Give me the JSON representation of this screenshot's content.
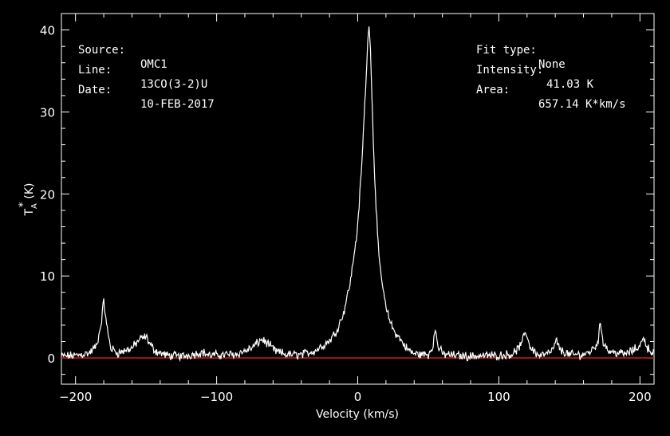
{
  "header_left": {
    "source_label": "Source:",
    "source_value": "OMC1",
    "line_label": "Line:",
    "line_value": "13CO(3-2)U",
    "date_label": "Date:",
    "date_value": "10-FEB-2017"
  },
  "header_right": {
    "fit_label": "Fit type:",
    "fit_value": "None",
    "intensity_label": "Intensity:",
    "intensity_value": "41.03 K",
    "area_label": "Area:",
    "area_value": "657.14 K*km/s"
  },
  "colors": {
    "background": "#000000",
    "trace": "#ffffff",
    "baseline": "#e0201e",
    "frame": "#ffffff"
  },
  "chart_data": {
    "type": "line",
    "xlabel": "Velocity (km/s)",
    "ylabel_main": "T",
    "ylabel_sub": "A",
    "ylabel_sup": "*",
    "ylabel_unit": "(K)",
    "xlim": [
      -210,
      210
    ],
    "ylim": [
      -3.2,
      42
    ],
    "xticks": [
      -200,
      -100,
      0,
      100,
      200
    ],
    "xtick_labels": [
      "−200",
      "−100",
      "0",
      "100",
      "200"
    ],
    "yticks": [
      0,
      10,
      20,
      30,
      40
    ],
    "ytick_labels": [
      "0",
      "10",
      "20",
      "30",
      "40"
    ],
    "baseline_y": 0,
    "series": [
      {
        "x": [
          -210,
          -200,
          -190,
          -185,
          -182,
          -180,
          -178,
          -175,
          -170,
          -160,
          -155,
          -150,
          -147,
          -143,
          -135,
          -125,
          -118,
          -110,
          -105,
          -95,
          -85,
          -75,
          -68,
          -63,
          -58,
          -50,
          -40,
          -30,
          -20,
          -15,
          -10,
          -5,
          0,
          3,
          5,
          7,
          8,
          9,
          10,
          12,
          15,
          20,
          25,
          30,
          35,
          40,
          50,
          53,
          55,
          57,
          60,
          70,
          80,
          90,
          100,
          110,
          116,
          119,
          122,
          128,
          135,
          139,
          141,
          143,
          150,
          160,
          165,
          170,
          172,
          174,
          178,
          185,
          190,
          195,
          200,
          203,
          205,
          208,
          210
        ],
        "y": [
          0.2,
          0.3,
          0.6,
          1.5,
          4,
          7,
          4,
          1.2,
          0.6,
          1.2,
          2.2,
          2.6,
          1.6,
          0.8,
          0.3,
          0.2,
          0.4,
          0.7,
          0.3,
          0.4,
          0.5,
          1.2,
          2.3,
          1.6,
          0.8,
          0.4,
          0.4,
          0.9,
          2.1,
          3.3,
          5.5,
          9.5,
          16,
          24,
          31,
          38,
          41,
          38,
          32,
          22,
          12,
          6,
          3.5,
          2.3,
          1.1,
          0.5,
          0.4,
          1.4,
          3.4,
          1.4,
          0.5,
          0.3,
          0.2,
          0.3,
          0.3,
          0.5,
          1.6,
          3.3,
          1.4,
          0.3,
          0.5,
          1.2,
          2.2,
          1.0,
          0.4,
          0.4,
          0.8,
          1.8,
          4.2,
          2,
          0.8,
          0.6,
          0.5,
          0.9,
          1.5,
          2.5,
          1.3,
          0.8,
          0.6
        ]
      }
    ]
  }
}
